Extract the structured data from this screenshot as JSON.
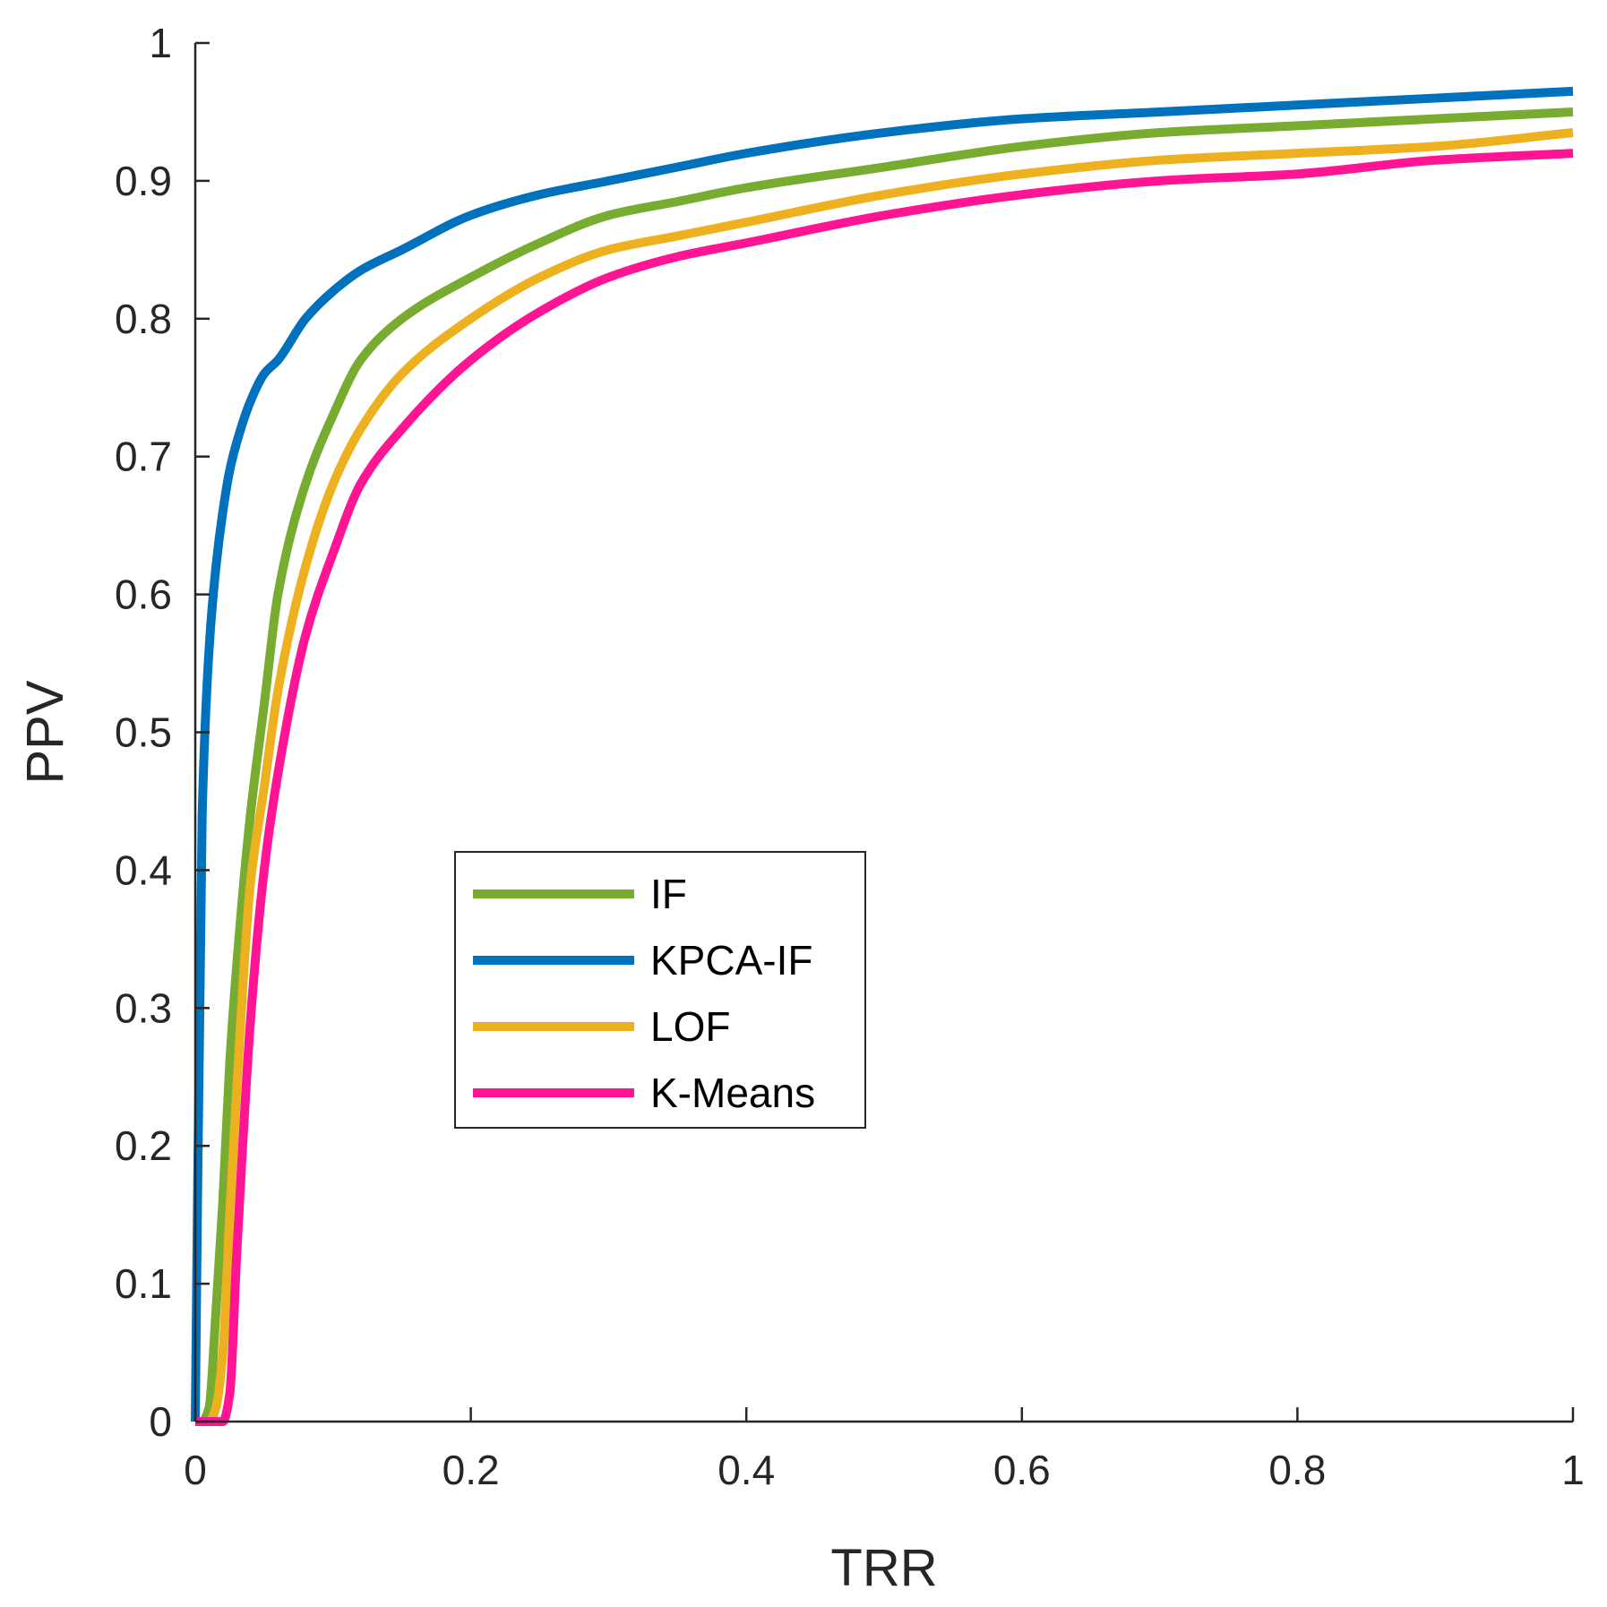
{
  "chart_data": {
    "type": "line",
    "title": "",
    "xlabel": "TRR",
    "ylabel": "PPV",
    "xlim": [
      0,
      1
    ],
    "ylim": [
      0,
      1
    ],
    "grid": false,
    "legend_position": "center-left",
    "x_ticks": [
      "0",
      "0.2",
      "0.4",
      "0.6",
      "0.8",
      "1"
    ],
    "y_ticks": [
      "0",
      "0.1",
      "0.2",
      "0.3",
      "0.4",
      "0.5",
      "0.6",
      "0.7",
      "0.8",
      "0.9",
      "1"
    ],
    "x": [
      0,
      0.005,
      0.01,
      0.015,
      0.02,
      0.025,
      0.03,
      0.04,
      0.05,
      0.06,
      0.08,
      0.1,
      0.12,
      0.15,
      0.2,
      0.25,
      0.3,
      0.35,
      0.4,
      0.5,
      0.6,
      0.7,
      0.8,
      0.9,
      1.0
    ],
    "series": [
      {
        "name": "IF",
        "color": "#77AC30",
        "values": [
          0,
          0,
          0.01,
          0.08,
          0.16,
          0.26,
          0.33,
          0.44,
          0.52,
          0.6,
          0.68,
          0.73,
          0.77,
          0.8,
          0.83,
          0.855,
          0.875,
          0.885,
          0.895,
          0.91,
          0.925,
          0.935,
          0.94,
          0.945,
          0.95
        ]
      },
      {
        "name": "KPCA-IF",
        "color": "#0072BD",
        "values": [
          0,
          0.44,
          0.56,
          0.62,
          0.66,
          0.69,
          0.71,
          0.74,
          0.76,
          0.77,
          0.8,
          0.82,
          0.835,
          0.85,
          0.875,
          0.89,
          0.9,
          0.91,
          0.92,
          0.935,
          0.945,
          0.95,
          0.955,
          0.96,
          0.965
        ]
      },
      {
        "name": "LOF",
        "color": "#EDB120",
        "values": [
          0,
          0,
          0,
          0.01,
          0.05,
          0.15,
          0.24,
          0.39,
          0.46,
          0.53,
          0.62,
          0.68,
          0.72,
          0.76,
          0.8,
          0.83,
          0.85,
          0.86,
          0.87,
          0.89,
          0.905,
          0.915,
          0.92,
          0.925,
          0.935
        ]
      },
      {
        "name": "K-Means",
        "color": "#FF1493",
        "values": [
          0,
          0,
          0,
          0,
          0,
          0.02,
          0.12,
          0.29,
          0.4,
          0.47,
          0.57,
          0.63,
          0.68,
          0.72,
          0.77,
          0.805,
          0.83,
          0.845,
          0.855,
          0.875,
          0.89,
          0.9,
          0.905,
          0.915,
          0.92
        ]
      }
    ]
  }
}
